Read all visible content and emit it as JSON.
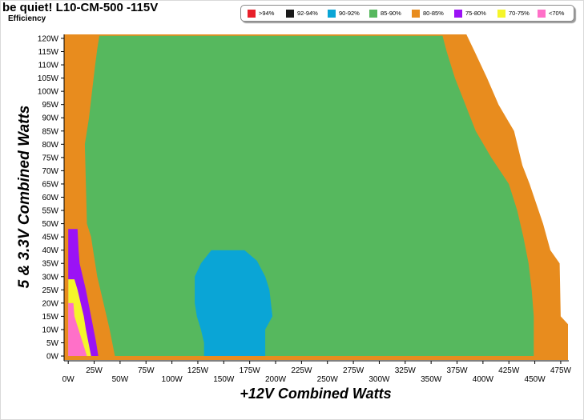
{
  "title": "be quiet! L10-CM-500 -115V",
  "subtitle": "Efficiency",
  "legend": [
    {
      "label": ">94%",
      "color": "#e8202a"
    },
    {
      "label": "92-94%",
      "color": "#1a1a1a"
    },
    {
      "label": "90-92%",
      "color": "#0aa5d6"
    },
    {
      "label": "85-90%",
      "color": "#56b85e"
    },
    {
      "label": "80-85%",
      "color": "#e88c1e"
    },
    {
      "label": "75-80%",
      "color": "#9b12f5"
    },
    {
      "label": "70-75%",
      "color": "#f5f52a"
    },
    {
      "label": "<70%",
      "color": "#ff70c8"
    }
  ],
  "chart_data": {
    "type": "heatmap",
    "xlabel": "+12V Combined Watts",
    "ylabel": "5 & 3.3V Combined Watts",
    "x_ticks": [
      "0W",
      "25W",
      "50W",
      "75W",
      "100W",
      "125W",
      "150W",
      "175W",
      "200W",
      "225W",
      "250W",
      "275W",
      "300W",
      "325W",
      "350W",
      "375W",
      "400W",
      "425W",
      "450W",
      "475W"
    ],
    "y_ticks": [
      "0W",
      "5W",
      "10W",
      "15W",
      "20W",
      "25W",
      "30W",
      "35W",
      "40W",
      "45W",
      "50W",
      "55W",
      "60W",
      "65W",
      "70W",
      "75W",
      "80W",
      "85W",
      "90W",
      "95W",
      "100W",
      "105W",
      "110W",
      "115W",
      "120W"
    ],
    "xlim": [
      -4,
      482
    ],
    "ylim": [
      -1.5,
      121.5
    ],
    "regions": [
      {
        "band": "85-90%",
        "color": "#56b85e",
        "boundary": [
          [
            45,
            0
          ],
          [
            40,
            10
          ],
          [
            34,
            20
          ],
          [
            28,
            30
          ],
          [
            26,
            35
          ],
          [
            24,
            40
          ],
          [
            22,
            45
          ],
          [
            18,
            50
          ],
          [
            16,
            80
          ],
          [
            20,
            90
          ],
          [
            23,
            100
          ],
          [
            26,
            110
          ],
          [
            28,
            116
          ],
          [
            30,
            121
          ],
          [
            361,
            121
          ],
          [
            365,
            115
          ],
          [
            373,
            105
          ],
          [
            383,
            95
          ],
          [
            393,
            85
          ],
          [
            408,
            75
          ],
          [
            425,
            65
          ],
          [
            433,
            55
          ],
          [
            439,
            45
          ],
          [
            444,
            35
          ],
          [
            447,
            25
          ],
          [
            449,
            15
          ],
          [
            449,
            0
          ]
        ]
      },
      {
        "band": "90-92%",
        "color": "#0aa5d6",
        "boundary": [
          [
            131,
            0
          ],
          [
            131,
            5
          ],
          [
            128,
            10
          ],
          [
            124,
            15
          ],
          [
            122,
            20
          ],
          [
            122,
            30
          ],
          [
            128,
            35
          ],
          [
            138,
            40
          ],
          [
            170,
            40
          ],
          [
            182,
            36
          ],
          [
            190,
            30
          ],
          [
            194,
            25
          ],
          [
            197,
            15
          ],
          [
            190,
            10
          ],
          [
            190,
            0
          ]
        ]
      },
      {
        "band": "75-80%",
        "color": "#9b12f5",
        "boundary": [
          [
            0,
            48
          ],
          [
            9,
            48
          ],
          [
            10,
            40
          ],
          [
            11,
            35
          ],
          [
            14,
            30
          ],
          [
            17,
            25
          ],
          [
            22,
            15
          ],
          [
            27,
            5
          ],
          [
            29,
            0
          ],
          [
            0,
            0
          ]
        ]
      },
      {
        "band": "70-75%",
        "color": "#f5f52a",
        "boundary": [
          [
            0,
            29
          ],
          [
            6,
            29
          ],
          [
            9,
            25
          ],
          [
            12,
            20
          ],
          [
            15,
            15
          ],
          [
            17,
            10
          ],
          [
            22,
            0
          ],
          [
            0,
            0
          ]
        ]
      },
      {
        "band": "<70%",
        "color": "#ff70c8",
        "boundary": [
          [
            0,
            20
          ],
          [
            5,
            20
          ],
          [
            6,
            15
          ],
          [
            10,
            10
          ],
          [
            14,
            5
          ],
          [
            18,
            0
          ],
          [
            0,
            0
          ]
        ]
      }
    ],
    "background_band": "80-85%",
    "background_color": "#e88c1e",
    "plot_extent": [
      [
        -4,
        -1.5
      ],
      [
        482,
        -1.5
      ],
      [
        482,
        12
      ],
      [
        475,
        15
      ],
      [
        474,
        35
      ],
      [
        465,
        40
      ],
      [
        458,
        50
      ],
      [
        445,
        65
      ],
      [
        438,
        72
      ],
      [
        430,
        85
      ],
      [
        415,
        95
      ],
      [
        404,
        105
      ],
      [
        392,
        115
      ],
      [
        384,
        121.5
      ],
      [
        -4,
        121.5
      ]
    ]
  }
}
